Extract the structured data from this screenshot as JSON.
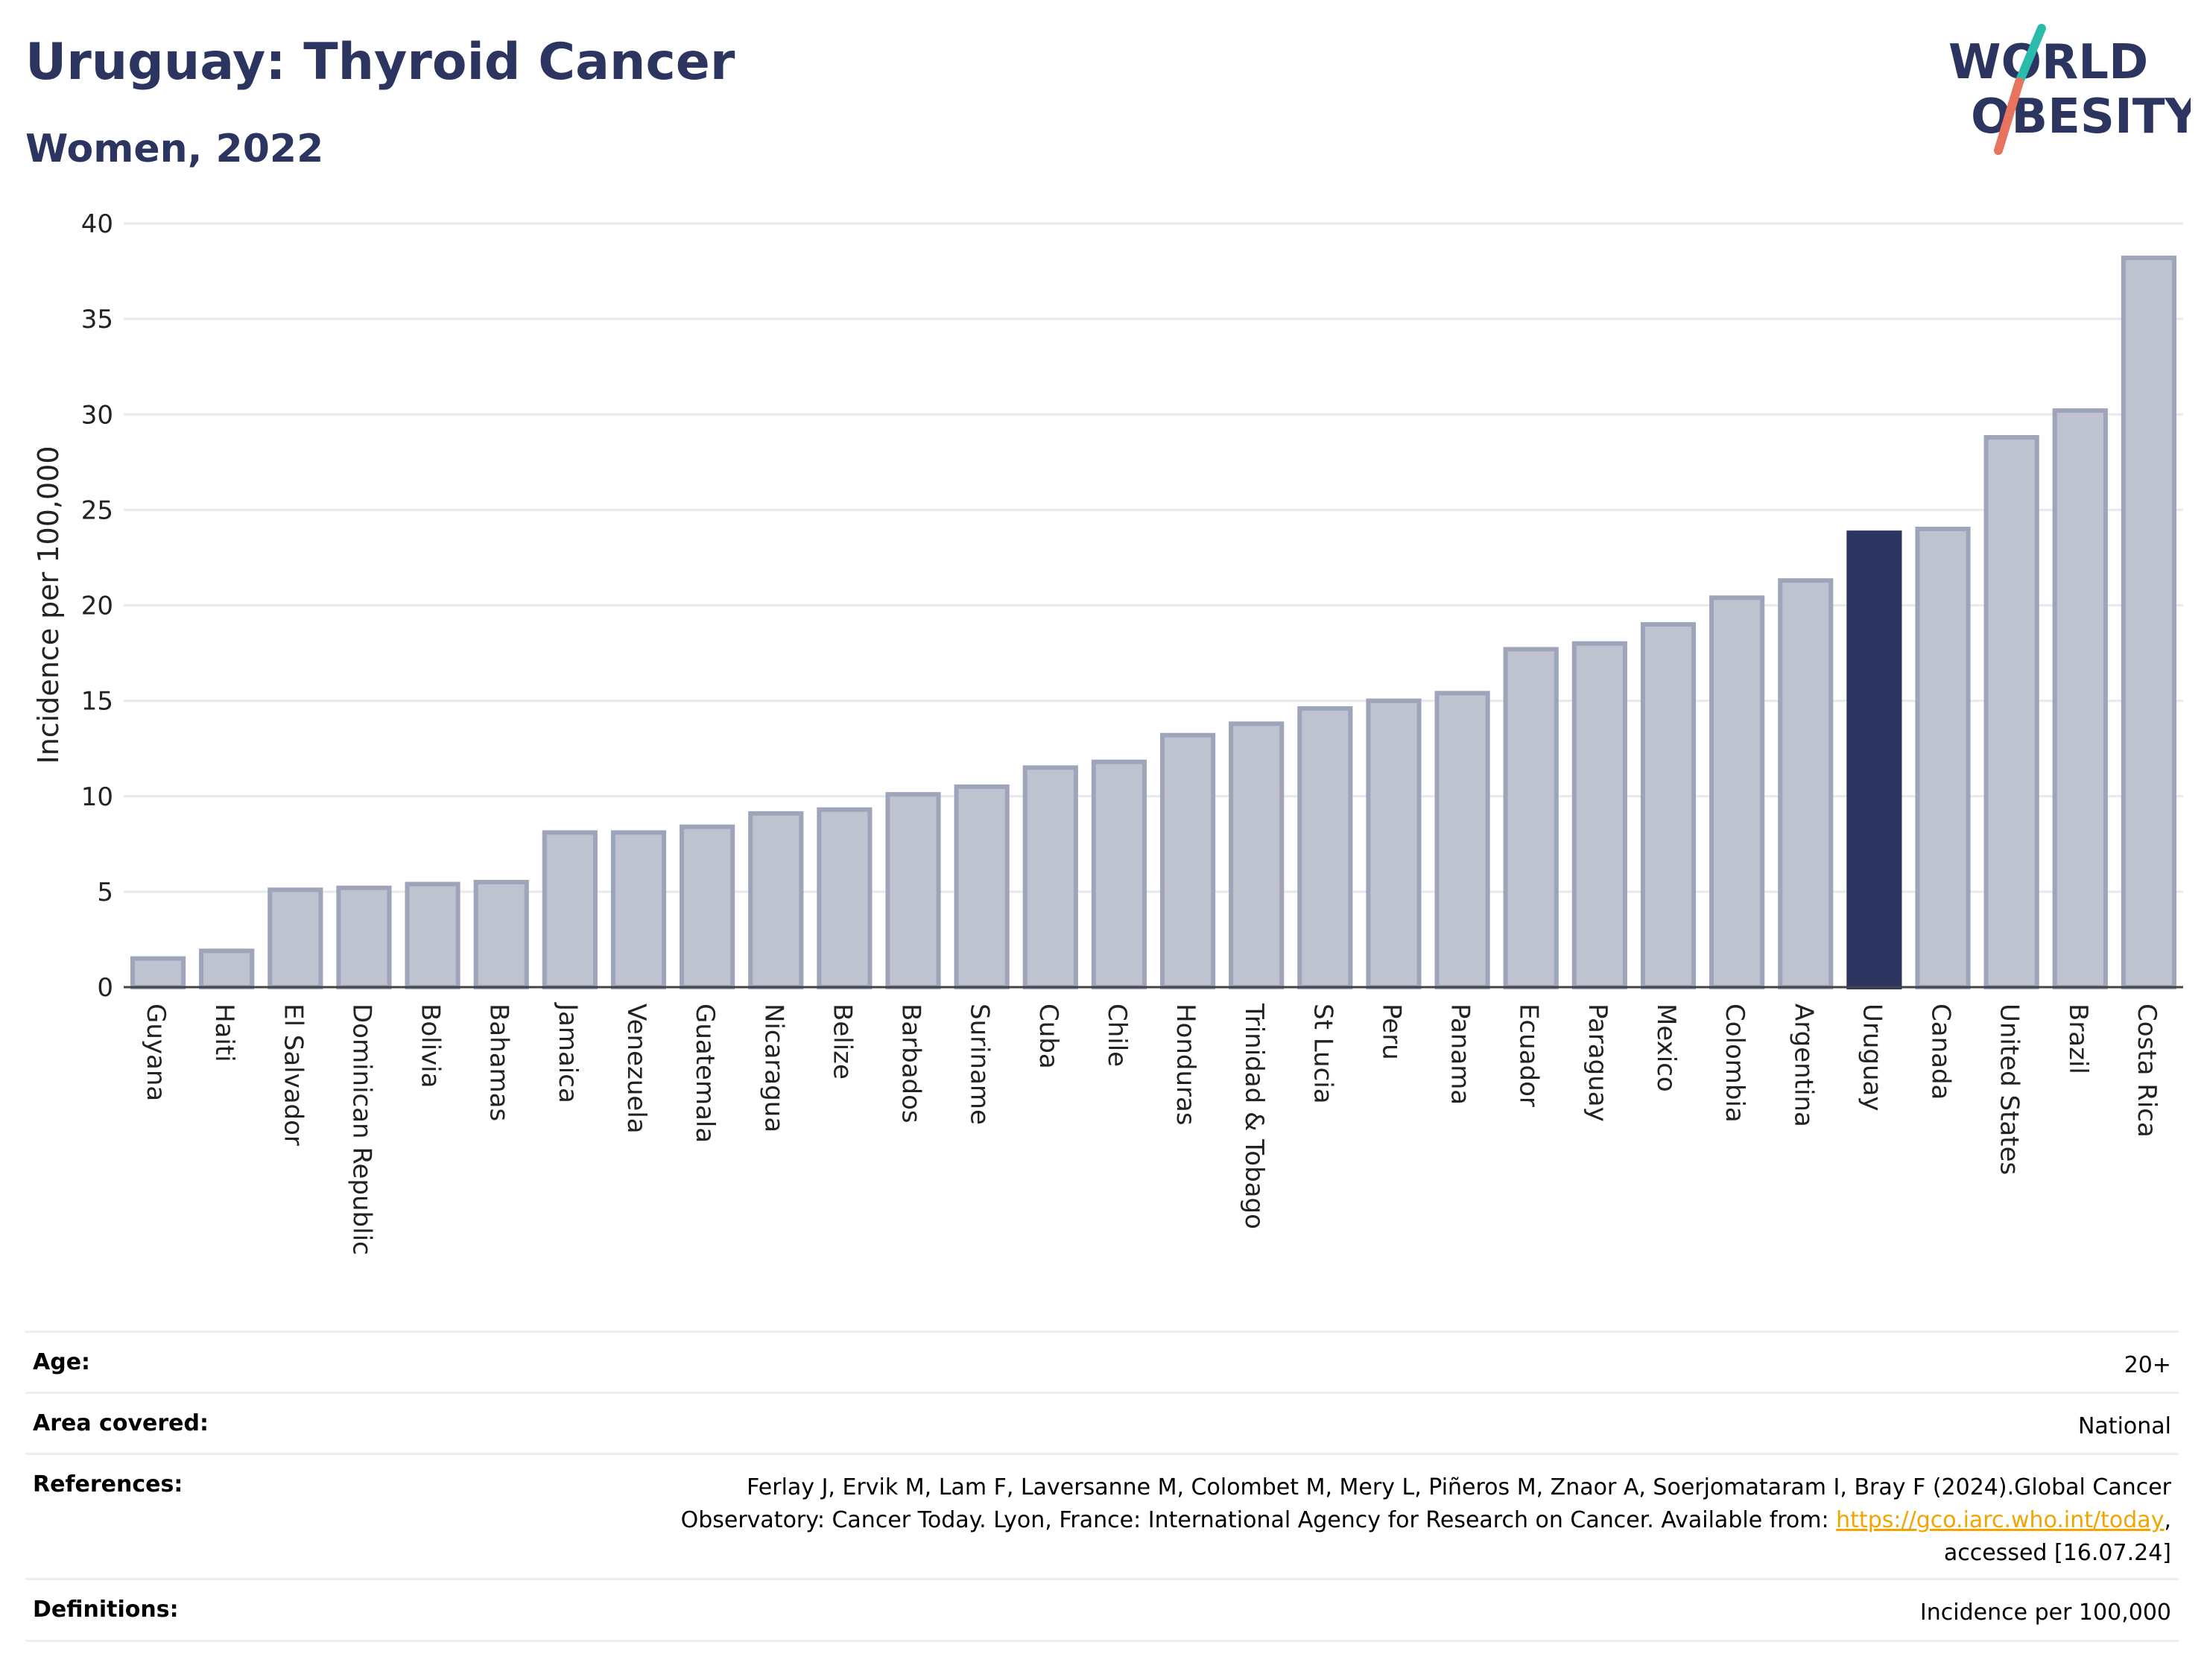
{
  "header": {
    "title": "Uruguay: Thyroid Cancer",
    "subtitle": "Women, 2022"
  },
  "logo": {
    "line1": "WORLD",
    "line2": "OBESITY",
    "colors": {
      "text": "#2b3560",
      "slash_top": "#2bbbad",
      "slash_bottom": "#e8735f"
    }
  },
  "chart_data": {
    "type": "bar",
    "title": "",
    "xlabel": "",
    "ylabel": "Incidence per 100,000",
    "ylim": [
      0,
      40
    ],
    "yticks": [
      0,
      5,
      10,
      15,
      20,
      25,
      30,
      35,
      40
    ],
    "grid": true,
    "categories": [
      "Guyana",
      "Haiti",
      "El Salvador",
      "Dominican Republic",
      "Bolivia",
      "Bahamas",
      "Jamaica",
      "Venezuela",
      "Guatemala",
      "Nicaragua",
      "Belize",
      "Barbados",
      "Suriname",
      "Cuba",
      "Chile",
      "Honduras",
      "Trinidad & Tobago",
      "St Lucia",
      "Peru",
      "Panama",
      "Ecuador",
      "Paraguay",
      "Mexico",
      "Colombia",
      "Argentina",
      "Uruguay",
      "Canada",
      "United States",
      "Brazil",
      "Costa Rica"
    ],
    "values": [
      1.5,
      1.9,
      5.1,
      5.2,
      5.4,
      5.5,
      8.1,
      8.1,
      8.4,
      9.1,
      9.3,
      10.1,
      10.5,
      11.5,
      11.8,
      13.2,
      13.8,
      14.6,
      15.0,
      15.4,
      17.7,
      18.0,
      19.0,
      20.4,
      21.3,
      23.8,
      24.0,
      28.8,
      30.2,
      38.2
    ],
    "highlight": "Uruguay",
    "colors": {
      "bar_fill": "#bfc3d0",
      "bar_stroke": "#9ea4ba",
      "highlight_fill": "#2b3560",
      "grid": "#e8e9ee",
      "axis": "#444444"
    }
  },
  "meta": {
    "age_label": "Age:",
    "age_value": "20+",
    "area_label": "Area covered:",
    "area_value": "National",
    "references_label": "References:",
    "references_line1": "Ferlay J, Ervik M, Lam F, Laversanne M, Colombet M, Mery L, Piñeros M, Znaor A, Soerjomataram I, Bray F (2024).Global Cancer",
    "references_line2_pre": "Observatory: Cancer Today. Lyon, France: International Agency for Research on Cancer. Available from: ",
    "references_link": "https://gco.iarc.who.int/today",
    "references_line2_post": ",",
    "references_line3": "accessed [16.07.24]",
    "definitions_label": "Definitions:",
    "definitions_value": "Incidence per 100,000"
  }
}
